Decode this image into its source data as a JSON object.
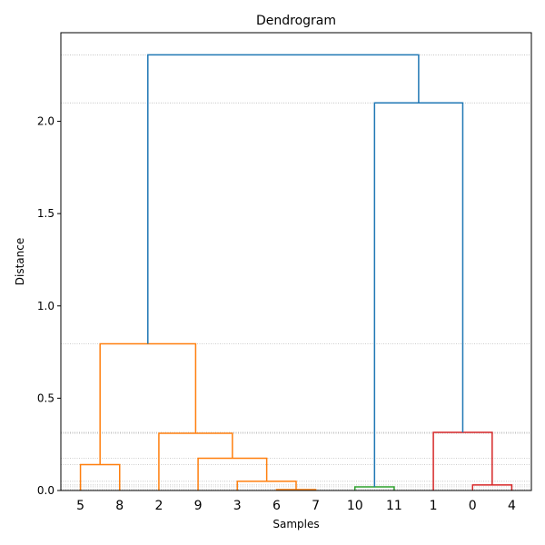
{
  "chart_data": {
    "type": "dendrogram",
    "title": "Dendrogram",
    "xlabel": "Samples",
    "ylabel": "Distance",
    "ylim": [
      0,
      2.48
    ],
    "yticks": [
      0.0,
      0.5,
      1.0,
      1.5,
      2.0
    ],
    "ytick_labels": [
      "0.0",
      "0.5",
      "1.0",
      "1.5",
      "2.0"
    ],
    "grid": "horizontal dotted lines at merge heights",
    "leaves": [
      "5",
      "8",
      "2",
      "9",
      "3",
      "6",
      "7",
      "10",
      "11",
      "1",
      "0",
      "4"
    ],
    "colors": {
      "orange": "#ff7f0e",
      "green": "#2ca02c",
      "red": "#d62728",
      "blue": "#1f77b4"
    },
    "merges": [
      {
        "left": "L0",
        "right": "L1",
        "height": 0.14,
        "color": "orange"
      },
      {
        "left": "L5",
        "right": "L6",
        "height": 0.005,
        "color": "orange"
      },
      {
        "left": "L4",
        "right": "M1",
        "height": 0.05,
        "color": "orange"
      },
      {
        "left": "L3",
        "right": "M2",
        "height": 0.175,
        "color": "orange"
      },
      {
        "left": "L2",
        "right": "M3",
        "height": 0.31,
        "color": "orange"
      },
      {
        "left": "M0",
        "right": "M4",
        "height": 0.795,
        "color": "orange"
      },
      {
        "left": "L7",
        "right": "L8",
        "height": 0.02,
        "color": "green"
      },
      {
        "left": "L10",
        "right": "L11",
        "height": 0.03,
        "color": "red"
      },
      {
        "left": "L9",
        "right": "M7",
        "height": 0.315,
        "color": "red"
      },
      {
        "left": "M6",
        "right": "M8",
        "height": 2.1,
        "color": "blue"
      },
      {
        "left": "M5",
        "right": "M9",
        "height": 2.36,
        "color": "blue"
      }
    ]
  }
}
